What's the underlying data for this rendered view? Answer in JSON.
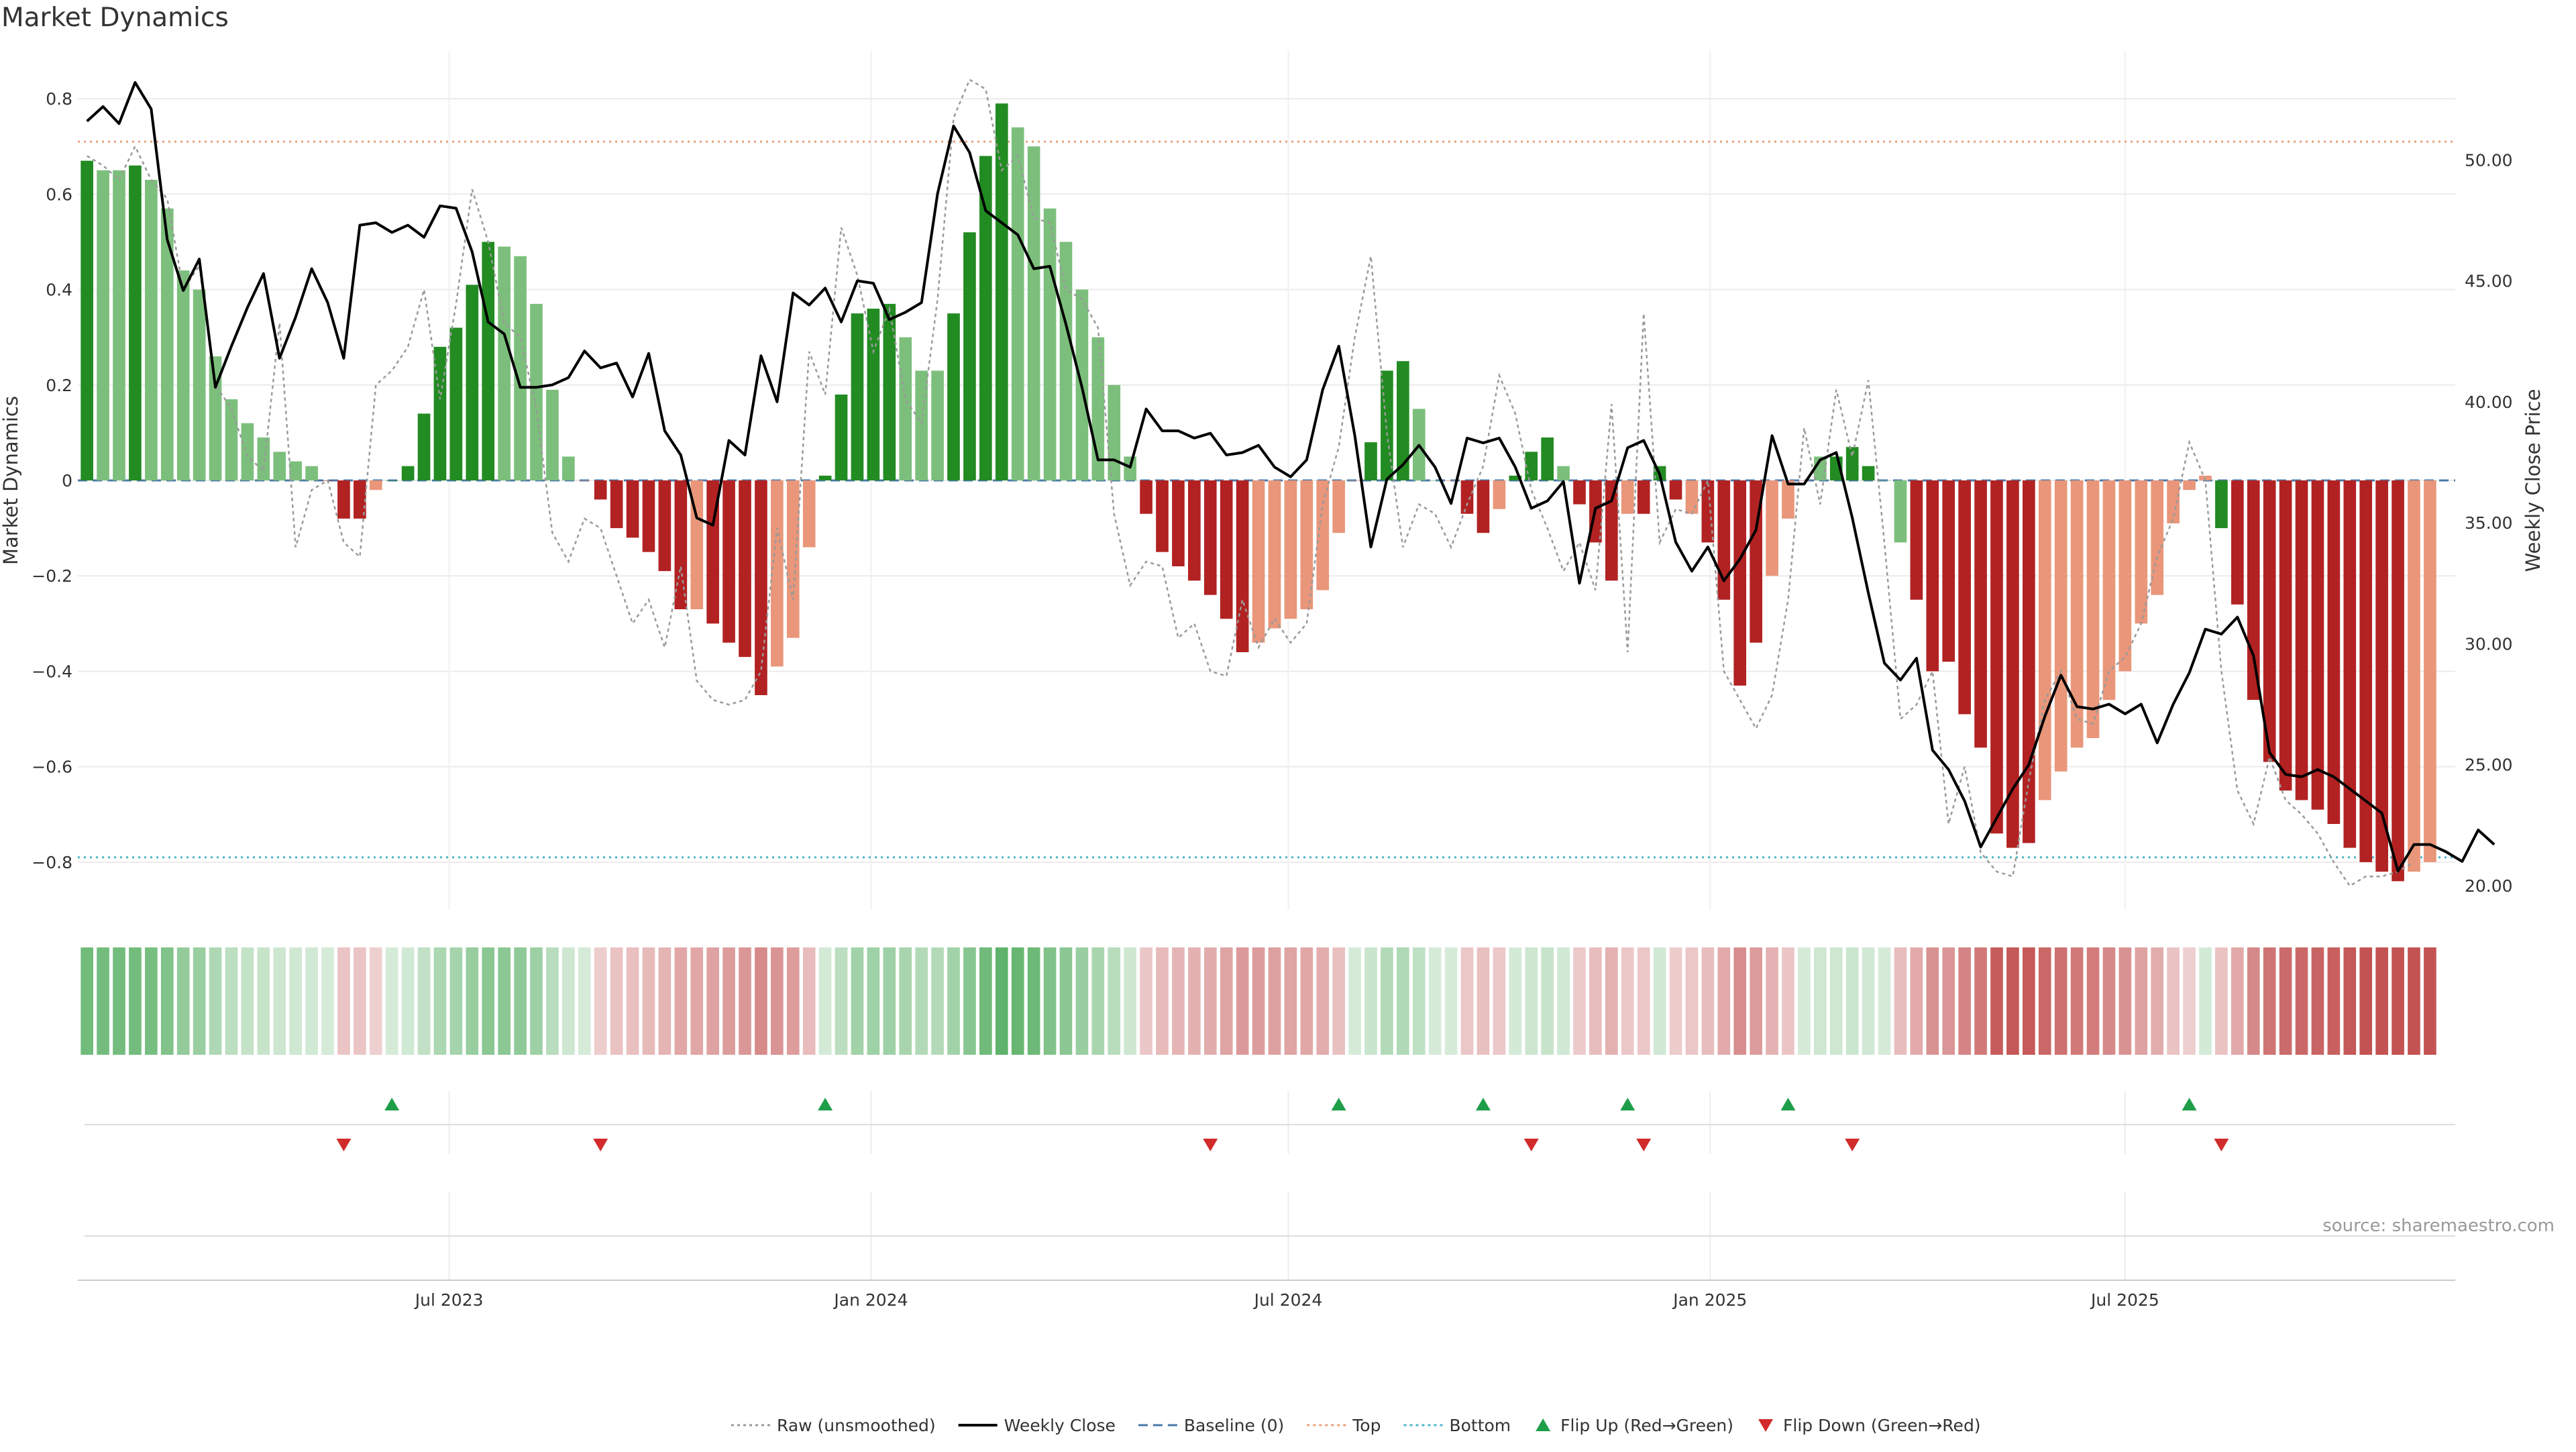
{
  "chart_data": {
    "type": "bar",
    "title": "Market Dynamics",
    "source": "source: sharemaestro.com",
    "ylabel": "Market Dynamics",
    "y2label": "Weekly Close Price",
    "ylim": [
      -0.9,
      0.9
    ],
    "yticks": [
      -0.8,
      -0.6,
      -0.4,
      -0.2,
      0,
      0.2,
      0.4,
      0.6,
      0.8
    ],
    "ytick_labels": [
      "−0.8",
      "−0.6",
      "−0.4",
      "−0.2",
      "0",
      "0.2",
      "0.4",
      "0.6",
      "0.8"
    ],
    "y2lim": [
      19.0,
      54.5
    ],
    "y2ticks": [
      20,
      25,
      30,
      35,
      40,
      45,
      50
    ],
    "y2tick_labels": [
      "20.00",
      "25.00",
      "30.00",
      "35.00",
      "40.00",
      "45.00",
      "50.00"
    ],
    "x_start": "2023-01-24",
    "x_step_days": 7,
    "xlim": [
      "2023-01-20",
      "2025-11-22"
    ],
    "xticks": [
      "2023-07-01",
      "2024-01-01",
      "2024-07-01",
      "2025-01-01",
      "2025-07-01"
    ],
    "xtick_labels": [
      "Jul 2023",
      "Jan 2024",
      "Jul 2024",
      "Jan 2025",
      "Jul 2025"
    ],
    "top_level": 0.71,
    "bottom_level": -0.79,
    "baseline": 0,
    "grid": true,
    "legend_position": "bottom-center",
    "legend": [
      {
        "label": "Raw (unsmoothed)",
        "kind": "dotted-line",
        "color": "#999999"
      },
      {
        "label": "Weekly Close",
        "kind": "line",
        "color": "#000000"
      },
      {
        "label": "Baseline (0)",
        "kind": "dashed-line",
        "color": "#4a78a8"
      },
      {
        "label": "Top",
        "kind": "dotted-line",
        "color": "#e8a07a"
      },
      {
        "label": "Bottom",
        "kind": "dotted-line",
        "color": "#4fb5c8"
      },
      {
        "label": "Flip Up (Red→Green)",
        "kind": "triangle-up",
        "color": "#1f9e4a"
      },
      {
        "label": "Flip Down (Green→Red)",
        "kind": "triangle-down",
        "color": "#d12b2b"
      }
    ],
    "colors": {
      "green_strong": "#228b22",
      "green_light": "#7cbf7c",
      "red_strong": "#b22222",
      "red_light": "#e9967a"
    },
    "series": [
      {
        "name": "Market Dynamics",
        "kind": "bar",
        "values": [
          0.67,
          0.65,
          0.65,
          0.66,
          0.63,
          0.57,
          0.44,
          0.4,
          0.26,
          0.17,
          0.12,
          0.09,
          0.06,
          0.04,
          0.03,
          0.0,
          -0.08,
          -0.08,
          -0.02,
          0.0,
          0.03,
          0.14,
          0.28,
          0.32,
          0.41,
          0.5,
          0.49,
          0.47,
          0.37,
          0.19,
          0.05,
          0.0,
          -0.04,
          -0.1,
          -0.12,
          -0.15,
          -0.19,
          -0.27,
          -0.27,
          -0.3,
          -0.34,
          -0.37,
          -0.45,
          -0.39,
          -0.33,
          -0.14,
          0.01,
          0.18,
          0.35,
          0.36,
          0.37,
          0.3,
          0.23,
          0.23,
          0.35,
          0.52,
          0.68,
          0.79,
          0.74,
          0.7,
          0.57,
          0.5,
          0.4,
          0.3,
          0.2,
          0.05,
          -0.07,
          -0.15,
          -0.18,
          -0.21,
          -0.24,
          -0.29,
          -0.36,
          -0.34,
          -0.31,
          -0.29,
          -0.27,
          -0.23,
          -0.11,
          0.0,
          0.08,
          0.23,
          0.25,
          0.15,
          0.0,
          0.0,
          -0.07,
          -0.11,
          -0.06,
          0.01,
          0.06,
          0.09,
          0.03,
          -0.05,
          -0.13,
          -0.21,
          -0.07,
          -0.07,
          0.03,
          -0.04,
          -0.07,
          -0.13,
          -0.25,
          -0.43,
          -0.34,
          -0.2,
          -0.08,
          0.0,
          0.05,
          0.05,
          0.07,
          0.03,
          0.0,
          -0.13,
          -0.25,
          -0.4,
          -0.38,
          -0.49,
          -0.56,
          -0.74,
          -0.77,
          -0.76,
          -0.67,
          -0.61,
          -0.56,
          -0.54,
          -0.46,
          -0.4,
          -0.3,
          -0.24,
          -0.09,
          -0.02,
          0.01,
          -0.1,
          -0.26,
          -0.46,
          -0.59,
          -0.65,
          -0.67,
          -0.69,
          -0.72,
          -0.77,
          -0.8,
          -0.82,
          -0.84,
          -0.82,
          -0.8
        ],
        "colors": [
          "g",
          "l",
          "l",
          "g",
          "l",
          "l",
          "l",
          "l",
          "l",
          "l",
          "l",
          "l",
          "l",
          "l",
          "l",
          "r",
          "r",
          "r",
          "s",
          "g",
          "g",
          "g",
          "g",
          "g",
          "g",
          "g",
          "l",
          "l",
          "l",
          "l",
          "l",
          "s",
          "r",
          "r",
          "r",
          "r",
          "r",
          "r",
          "s",
          "r",
          "r",
          "r",
          "r",
          "s",
          "s",
          "s",
          "g",
          "g",
          "g",
          "g",
          "g",
          "l",
          "l",
          "l",
          "g",
          "g",
          "g",
          "g",
          "l",
          "l",
          "l",
          "l",
          "l",
          "l",
          "l",
          "l",
          "r",
          "r",
          "r",
          "r",
          "r",
          "r",
          "r",
          "s",
          "s",
          "s",
          "s",
          "s",
          "s",
          "s",
          "g",
          "g",
          "g",
          "l",
          "l",
          "s",
          "r",
          "r",
          "s",
          "g",
          "g",
          "g",
          "l",
          "r",
          "r",
          "r",
          "s",
          "r",
          "g",
          "r",
          "s",
          "r",
          "r",
          "r",
          "r",
          "s",
          "s",
          "s",
          "l",
          "g",
          "g",
          "g",
          "l",
          "l",
          "r",
          "r",
          "r",
          "r",
          "r",
          "r",
          "r",
          "r",
          "s",
          "s",
          "s",
          "s",
          "s",
          "s",
          "s",
          "s",
          "s",
          "s",
          "s",
          "g",
          "r",
          "r",
          "r",
          "r",
          "r",
          "r",
          "r",
          "r",
          "r",
          "r",
          "r",
          "s",
          "s"
        ]
      },
      {
        "name": "Raw (unsmoothed)",
        "kind": "dotted-line",
        "values": [
          0.68,
          0.66,
          0.63,
          0.7,
          0.63,
          0.59,
          0.4,
          0.45,
          0.2,
          0.15,
          0.05,
          0.02,
          0.33,
          -0.14,
          -0.02,
          0.0,
          -0.13,
          -0.16,
          0.2,
          0.23,
          0.28,
          0.4,
          0.17,
          0.37,
          0.61,
          0.5,
          0.33,
          0.3,
          0.15,
          -0.11,
          -0.17,
          -0.08,
          -0.1,
          -0.2,
          -0.3,
          -0.25,
          -0.35,
          -0.18,
          -0.42,
          -0.46,
          -0.47,
          -0.46,
          -0.4,
          -0.1,
          -0.25,
          0.27,
          0.18,
          0.53,
          0.43,
          0.27,
          0.36,
          0.17,
          0.12,
          0.38,
          0.76,
          0.84,
          0.82,
          0.65,
          0.68,
          0.55,
          0.54,
          0.4,
          0.38,
          0.32,
          -0.07,
          -0.22,
          -0.17,
          -0.18,
          -0.33,
          -0.3,
          -0.4,
          -0.41,
          -0.25,
          -0.35,
          -0.29,
          -0.34,
          -0.3,
          -0.05,
          0.07,
          0.3,
          0.47,
          0.1,
          -0.14,
          -0.05,
          -0.07,
          -0.14,
          -0.05,
          0.03,
          0.22,
          0.14,
          -0.02,
          -0.1,
          -0.19,
          -0.13,
          -0.23,
          0.16,
          -0.36,
          0.35,
          -0.13,
          -0.06,
          -0.07,
          0.0,
          -0.4,
          -0.46,
          -0.52,
          -0.45,
          -0.25,
          0.11,
          -0.05,
          0.19,
          0.05,
          0.21,
          -0.13,
          -0.5,
          -0.47,
          -0.4,
          -0.72,
          -0.6,
          -0.78,
          -0.82,
          -0.83,
          -0.63,
          -0.46,
          -0.4,
          -0.5,
          -0.51,
          -0.4,
          -0.37,
          -0.3,
          -0.16,
          -0.08,
          0.08,
          0.0,
          -0.4,
          -0.65,
          -0.72,
          -0.58,
          -0.67,
          -0.7,
          -0.74,
          -0.8,
          -0.85,
          -0.83,
          -0.83,
          -0.82,
          -0.8
        ]
      },
      {
        "name": "Weekly Close",
        "kind": "line",
        "axis": "right",
        "values": [
          51.6,
          52.2,
          51.5,
          53.2,
          52.1,
          46.7,
          44.6,
          45.9,
          40.6,
          42.3,
          43.9,
          45.3,
          41.8,
          43.5,
          45.5,
          44.1,
          41.8,
          47.3,
          47.4,
          47.0,
          47.3,
          46.8,
          48.1,
          48.0,
          46.2,
          43.3,
          42.8,
          40.6,
          40.6,
          40.7,
          41.0,
          42.1,
          41.4,
          41.6,
          40.2,
          42.0,
          38.8,
          37.8,
          35.2,
          34.9,
          38.4,
          37.8,
          41.9,
          40.0,
          44.5,
          44.0,
          44.7,
          43.3,
          45.0,
          44.9,
          43.4,
          43.7,
          44.1,
          48.6,
          51.4,
          50.3,
          47.9,
          47.4,
          46.9,
          45.5,
          45.6,
          43.2,
          40.6,
          37.6,
          37.6,
          37.3,
          39.7,
          38.8,
          38.8,
          38.5,
          38.7,
          37.8,
          37.9,
          38.2,
          37.3,
          36.9,
          37.6,
          40.5,
          42.3,
          38.6,
          34.0,
          36.8,
          37.4,
          38.2,
          37.3,
          35.8,
          38.5,
          38.3,
          38.5,
          37.3,
          35.6,
          35.9,
          36.7,
          32.5,
          35.6,
          35.9,
          38.1,
          38.4,
          37.0,
          34.2,
          33.0,
          34.0,
          32.6,
          33.5,
          34.7,
          38.6,
          36.6,
          36.6,
          37.6,
          37.9,
          35.2,
          32.1,
          29.2,
          28.5,
          29.4,
          25.6,
          24.8,
          23.5,
          21.6,
          22.8,
          24.0,
          25.0,
          27.0,
          28.7,
          27.4,
          27.3,
          27.5,
          27.1,
          27.5,
          25.9,
          27.5,
          28.8,
          30.6,
          30.4,
          31.1,
          29.5,
          25.5,
          24.6,
          24.5,
          24.8,
          24.5,
          24.0,
          23.5,
          23.0,
          20.6,
          21.7,
          21.7,
          21.4,
          21.0,
          22.3,
          21.7
        ]
      }
    ],
    "regime_strip": {
      "description_values": "signal intensity per week, same order as bars",
      "values": [
        0.67,
        0.65,
        0.65,
        0.66,
        0.63,
        0.57,
        0.44,
        0.4,
        0.26,
        0.17,
        0.12,
        0.09,
        0.06,
        0.04,
        0.03,
        0.0,
        -0.08,
        -0.08,
        -0.02,
        0.0,
        0.03,
        0.14,
        0.28,
        0.32,
        0.41,
        0.5,
        0.49,
        0.47,
        0.37,
        0.19,
        0.05,
        0.0,
        -0.04,
        -0.1,
        -0.12,
        -0.15,
        -0.19,
        -0.27,
        -0.27,
        -0.3,
        -0.34,
        -0.37,
        -0.45,
        -0.39,
        -0.33,
        -0.14,
        0.01,
        0.18,
        0.35,
        0.36,
        0.37,
        0.3,
        0.23,
        0.23,
        0.35,
        0.52,
        0.68,
        0.79,
        0.74,
        0.7,
        0.57,
        0.5,
        0.4,
        0.3,
        0.2,
        0.05,
        -0.07,
        -0.15,
        -0.18,
        -0.21,
        -0.24,
        -0.29,
        -0.36,
        -0.34,
        -0.31,
        -0.29,
        -0.27,
        -0.23,
        -0.11,
        0.0,
        0.08,
        0.23,
        0.25,
        0.15,
        0.0,
        0.0,
        -0.07,
        -0.11,
        -0.06,
        0.01,
        0.06,
        0.09,
        0.03,
        -0.05,
        -0.13,
        -0.21,
        -0.07,
        -0.07,
        0.03,
        -0.04,
        -0.07,
        -0.13,
        -0.25,
        -0.43,
        -0.34,
        -0.2,
        -0.08,
        0.0,
        0.05,
        0.05,
        0.07,
        0.03,
        0.0,
        -0.13,
        -0.25,
        -0.4,
        -0.38,
        -0.49,
        -0.56,
        -0.74,
        -0.77,
        -0.76,
        -0.67,
        -0.61,
        -0.56,
        -0.54,
        -0.46,
        -0.4,
        -0.3,
        -0.24,
        -0.09,
        -0.02,
        0.01,
        -0.1,
        -0.26,
        -0.46,
        -0.59,
        -0.65,
        -0.67,
        -0.69,
        -0.72,
        -0.77,
        -0.8,
        -0.82,
        -0.84,
        -0.82,
        -0.8
      ]
    },
    "flip_up_dates": [
      "2023-06-06",
      "2023-12-12",
      "2024-07-23",
      "2024-09-24",
      "2024-11-26",
      "2025-02-04",
      "2025-07-29"
    ],
    "flip_down_dates": [
      "2023-05-16",
      "2023-09-05",
      "2024-05-28",
      "2024-10-15",
      "2024-12-03",
      "2025-03-04",
      "2025-08-12"
    ]
  }
}
